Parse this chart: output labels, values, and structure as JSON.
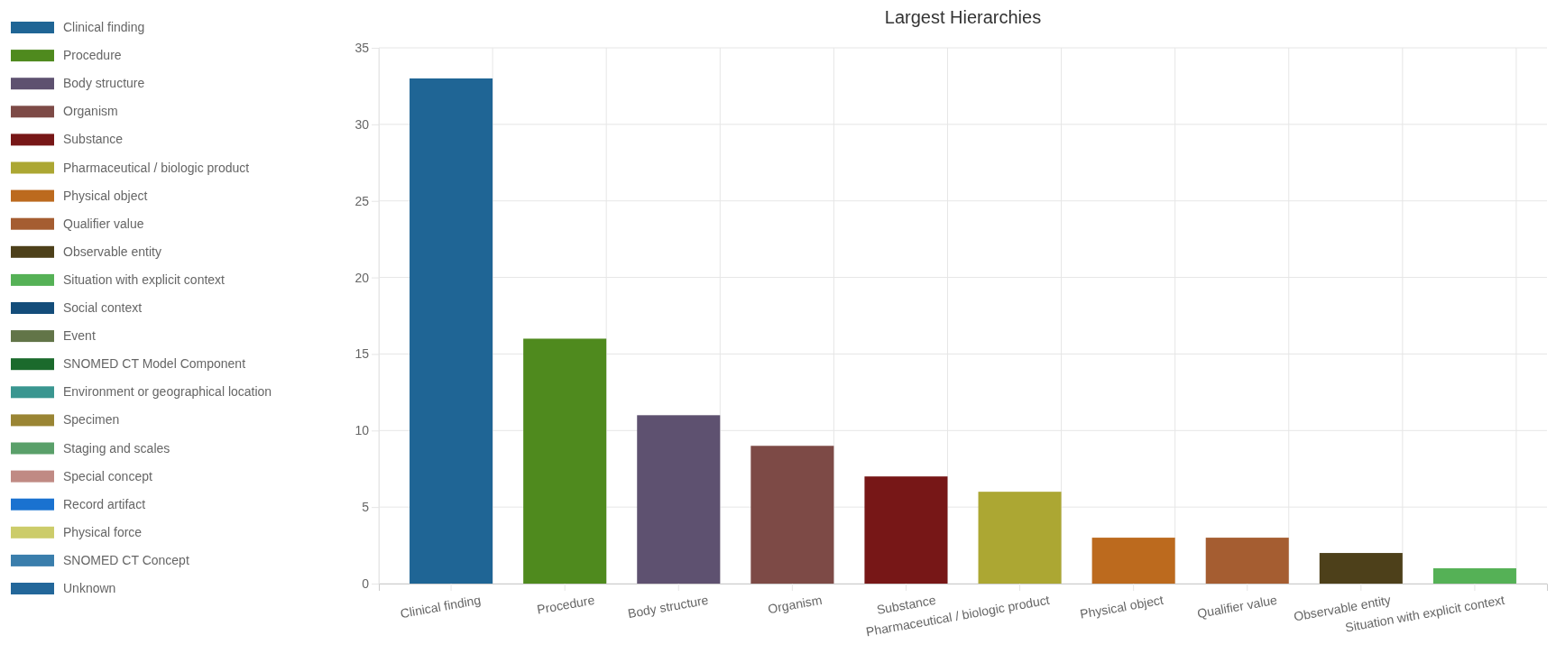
{
  "chart_data": {
    "type": "bar",
    "title": "Largest Hierarchies",
    "stacked": true,
    "grid": true,
    "legend": "left",
    "categories": [
      "Clinical finding",
      "Procedure",
      "Body structure",
      "Organism",
      "Substance",
      "Pharmaceutical / biologic product",
      "Physical object",
      "Qualifier value",
      "Observable entity",
      "Situation with explicit context"
    ],
    "ylim": [
      0,
      35
    ],
    "yticks": [
      0,
      5,
      10,
      15,
      20,
      25,
      30,
      35
    ],
    "series": [
      {
        "name": "Clinical finding",
        "color": "#1f6595",
        "values": [
          33,
          null,
          null,
          null,
          null,
          null,
          null,
          null,
          null,
          null
        ]
      },
      {
        "name": "Procedure",
        "color": "#4f8a1e",
        "values": [
          null,
          16,
          null,
          null,
          null,
          null,
          null,
          null,
          null,
          null
        ]
      },
      {
        "name": "Body structure",
        "color": "#5e5170",
        "values": [
          null,
          null,
          11,
          null,
          null,
          null,
          null,
          null,
          null,
          null
        ]
      },
      {
        "name": "Organism",
        "color": "#7d4a46",
        "values": [
          null,
          null,
          null,
          9,
          null,
          null,
          null,
          null,
          null,
          null
        ]
      },
      {
        "name": "Substance",
        "color": "#771717",
        "values": [
          null,
          null,
          null,
          null,
          7,
          null,
          null,
          null,
          null,
          null
        ]
      },
      {
        "name": "Pharmaceutical / biologic product",
        "color": "#aca733",
        "values": [
          null,
          null,
          null,
          null,
          null,
          6,
          null,
          null,
          null,
          null
        ]
      },
      {
        "name": "Physical object",
        "color": "#bc6a1e",
        "values": [
          null,
          null,
          null,
          null,
          null,
          null,
          3,
          null,
          null,
          null
        ]
      },
      {
        "name": "Qualifier value",
        "color": "#a55d31",
        "values": [
          null,
          null,
          null,
          null,
          null,
          null,
          null,
          3,
          null,
          null
        ]
      },
      {
        "name": "Observable entity",
        "color": "#4d401a",
        "values": [
          null,
          null,
          null,
          null,
          null,
          null,
          null,
          null,
          2,
          null
        ]
      },
      {
        "name": "Situation with explicit context",
        "color": "#55b156",
        "values": [
          null,
          null,
          null,
          null,
          null,
          null,
          null,
          null,
          null,
          1
        ]
      },
      {
        "name": "Social context",
        "color": "#144d7a",
        "values": [
          null,
          null,
          null,
          null,
          null,
          null,
          null,
          null,
          null,
          null
        ]
      },
      {
        "name": "Event",
        "color": "#627548",
        "values": [
          null,
          null,
          null,
          null,
          null,
          null,
          null,
          null,
          null,
          null
        ]
      },
      {
        "name": "SNOMED CT Model Component",
        "color": "#1b6a2c",
        "values": [
          null,
          null,
          null,
          null,
          null,
          null,
          null,
          null,
          null,
          null
        ]
      },
      {
        "name": "Environment or geographical location",
        "color": "#3a9690",
        "values": [
          null,
          null,
          null,
          null,
          null,
          null,
          null,
          null,
          null,
          null
        ]
      },
      {
        "name": "Specimen",
        "color": "#9a8534",
        "values": [
          null,
          null,
          null,
          null,
          null,
          null,
          null,
          null,
          null,
          null
        ]
      },
      {
        "name": "Staging and scales",
        "color": "#5aa06a",
        "values": [
          null,
          null,
          null,
          null,
          null,
          null,
          null,
          null,
          null,
          null
        ]
      },
      {
        "name": "Special concept",
        "color": "#c08a84",
        "values": [
          null,
          null,
          null,
          null,
          null,
          null,
          null,
          null,
          null,
          null
        ]
      },
      {
        "name": "Record artifact",
        "color": "#1a72d0",
        "values": [
          null,
          null,
          null,
          null,
          null,
          null,
          null,
          null,
          null,
          null
        ]
      },
      {
        "name": "Physical force",
        "color": "#cccc6a",
        "values": [
          null,
          null,
          null,
          null,
          null,
          null,
          null,
          null,
          null,
          null
        ]
      },
      {
        "name": "SNOMED CT Concept",
        "color": "#3a7eac",
        "values": [
          null,
          null,
          null,
          null,
          null,
          null,
          null,
          null,
          null,
          null
        ]
      },
      {
        "name": "Unknown",
        "color": "#23679a",
        "values": [
          null,
          null,
          null,
          null,
          null,
          null,
          null,
          null,
          null,
          null
        ]
      }
    ]
  }
}
